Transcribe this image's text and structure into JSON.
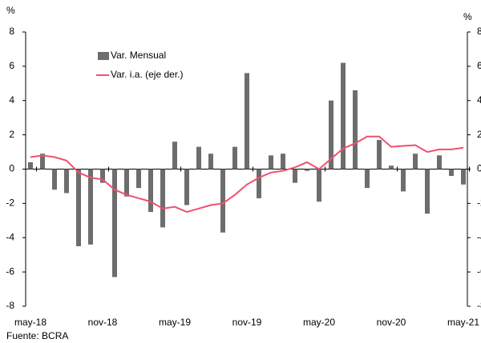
{
  "chart_data": {
    "type": "bar_line",
    "y_unit": "%",
    "y2_unit": "%",
    "source": "Fuente: BCRA",
    "categories": [
      "may-18",
      null,
      null,
      null,
      null,
      null,
      "nov-18",
      null,
      null,
      null,
      null,
      null,
      "may-19",
      null,
      null,
      null,
      null,
      null,
      "nov-19",
      null,
      null,
      null,
      null,
      null,
      "may-20",
      null,
      null,
      null,
      null,
      null,
      "nov-20",
      null,
      null,
      null,
      null,
      null,
      "may-21"
    ],
    "series": [
      {
        "name": "Var. Mensual",
        "type": "bar",
        "color": "#6d6d6d",
        "values": [
          0.4,
          0.9,
          -1.2,
          -1.4,
          -4.5,
          -4.4,
          -0.8,
          -6.3,
          -1.6,
          -1.1,
          -2.5,
          -3.4,
          1.6,
          -2.1,
          1.3,
          0.9,
          -3.7,
          1.3,
          5.6,
          -1.7,
          0.8,
          0.9,
          -0.8,
          -0.1,
          -1.9,
          4.0,
          6.2,
          4.6,
          -1.1,
          1.7,
          0.2,
          -1.3,
          0.9,
          -2.6,
          0.8,
          -0.4,
          -0.9
        ]
      },
      {
        "name": "Var. i.a. (eje der.)",
        "type": "line",
        "axis": "y2",
        "color": "#f0506e",
        "values": [
          0.7,
          0.8,
          0.7,
          0.5,
          -0.2,
          -0.5,
          -0.6,
          -1.2,
          -1.5,
          -1.7,
          -1.9,
          -2.3,
          -2.2,
          -2.5,
          -2.3,
          -2.1,
          -2.0,
          -1.5,
          -0.9,
          -0.5,
          -0.2,
          -0.1,
          0.1,
          0.4,
          0.0,
          0.6,
          1.2,
          1.5,
          1.9,
          1.9,
          1.3,
          1.35,
          1.4,
          1.0,
          1.15,
          1.15,
          1.25
        ]
      }
    ],
    "ylim": [
      -8,
      8
    ],
    "yticks": [
      -8,
      -6,
      -4,
      -2,
      0,
      2,
      4,
      6,
      8
    ],
    "y2lim": [
      -8,
      8
    ],
    "y2ticks": [
      -8,
      -6,
      -4,
      -2,
      0,
      2,
      4,
      6,
      8
    ],
    "legend": "upper left"
  }
}
